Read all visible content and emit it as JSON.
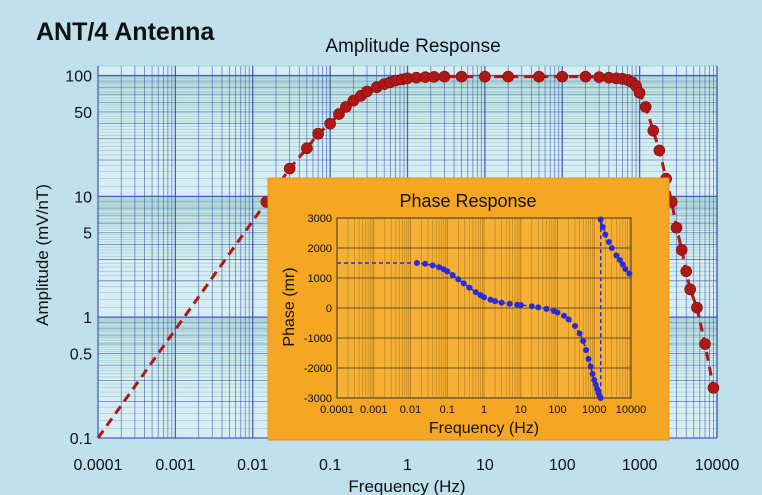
{
  "main_title": "ANT/4 Antenna",
  "colors": {
    "background": "#bfe0ec",
    "plot_area": "#d7edf3",
    "grid_blue": "#3b4fb8",
    "grid_green": "#3aa17e",
    "amplitude_marker": "#b01818",
    "inset_background": "#f5a623",
    "inset_plot_area": "#f5b035",
    "inset_grid": "#b8801e",
    "phase_marker": "#2a2ad8"
  },
  "chart_data": [
    {
      "type": "line",
      "title": "Amplitude Response",
      "xlabel": "Frequency  (Hz)",
      "ylabel": "Amplitude  (mV/nT)",
      "x_scale": "log",
      "y_scale": "log",
      "xlim": [
        0.0001,
        10000
      ],
      "ylim": [
        0.1,
        120
      ],
      "x_ticks": [
        0.0001,
        0.001,
        0.01,
        0.1,
        1,
        10,
        100,
        1000,
        10000
      ],
      "x_tick_labels": [
        "0.0001",
        "0.001",
        "0.01",
        "0.1",
        "1",
        "10",
        "100",
        "1000",
        "10000"
      ],
      "y_ticks": [
        0.1,
        0.5,
        1,
        5,
        10,
        50,
        100
      ],
      "y_tick_labels": [
        "0.1",
        "0.5",
        "1",
        "5",
        "10",
        "50",
        "100"
      ],
      "grid": true,
      "series": [
        {
          "style": "dashed line with circle markers",
          "x": [
            0.0001,
            0.015,
            0.03,
            0.05,
            0.07,
            0.1,
            0.13,
            0.16,
            0.2,
            0.25,
            0.3,
            0.4,
            0.5,
            0.6,
            0.7,
            0.85,
            1,
            1.3,
            1.7,
            2.2,
            3,
            5,
            10,
            20,
            50,
            100,
            200,
            300,
            400,
            500,
            600,
            700,
            800,
            900,
            1000,
            1200,
            1500,
            1800,
            2200,
            2600,
            3000,
            3500,
            4000,
            4500,
            5500,
            7000,
            9000
          ],
          "y": [
            0.1,
            9,
            17,
            25,
            33,
            40,
            48,
            55,
            62,
            68,
            74,
            80,
            85,
            88,
            91,
            93,
            95,
            96,
            97,
            97.5,
            98,
            98,
            98,
            98,
            98,
            98,
            98,
            97,
            96,
            95,
            94,
            92,
            88,
            82,
            72,
            55,
            35,
            24,
            14,
            9,
            5.5,
            3.6,
            2.4,
            1.7,
            1.2,
            0.6,
            0.26
          ]
        }
      ]
    },
    {
      "type": "line",
      "title": "Phase Response",
      "xlabel": "Frequency  (Hz)",
      "ylabel": "Phase  (mr)",
      "x_scale": "log",
      "xlim": [
        0.0001,
        10000
      ],
      "ylim": [
        -3000,
        3000
      ],
      "x_ticks": [
        0.0001,
        0.001,
        0.01,
        0.1,
        1,
        10,
        100,
        1000,
        10000
      ],
      "x_tick_labels": [
        "0.0001",
        "0.001",
        "0.01",
        "0.1",
        "1",
        "10",
        "100",
        "1000",
        "10000"
      ],
      "y_ticks": [
        -3000,
        -2000,
        -1000,
        0,
        1000,
        2000,
        3000
      ],
      "y_tick_labels": [
        "-3000",
        "-2000",
        "-1000",
        "0",
        "1000",
        "2000",
        "3000"
      ],
      "grid": true,
      "series": [
        {
          "style": "dashed line with circle markers",
          "x": [
            0.0001,
            0.015,
            0.025,
            0.04,
            0.06,
            0.08,
            0.1,
            0.14,
            0.2,
            0.28,
            0.4,
            0.6,
            0.8,
            1,
            1.5,
            2,
            3,
            5,
            8,
            10,
            20,
            30,
            50,
            80,
            100,
            150,
            200,
            300,
            400,
            500,
            600,
            700,
            800,
            900,
            1000,
            1100,
            1200,
            1300,
            1400,
            1500,
            1500,
            1700,
            2000,
            2500,
            3000,
            4000,
            5000,
            6000,
            7000,
            9000
          ],
          "y": [
            1500,
            1500,
            1470,
            1420,
            1360,
            1290,
            1220,
            1100,
            960,
            820,
            680,
            530,
            430,
            360,
            280,
            230,
            180,
            140,
            110,
            100,
            60,
            20,
            -30,
            -100,
            -150,
            -260,
            -380,
            -600,
            -850,
            -1100,
            -1400,
            -1700,
            -1950,
            -2200,
            -2400,
            -2550,
            -2700,
            -2820,
            -2920,
            -3000,
            2950,
            2700,
            2450,
            2200,
            2000,
            1750,
            1600,
            1450,
            1300,
            1150
          ]
        }
      ]
    }
  ]
}
